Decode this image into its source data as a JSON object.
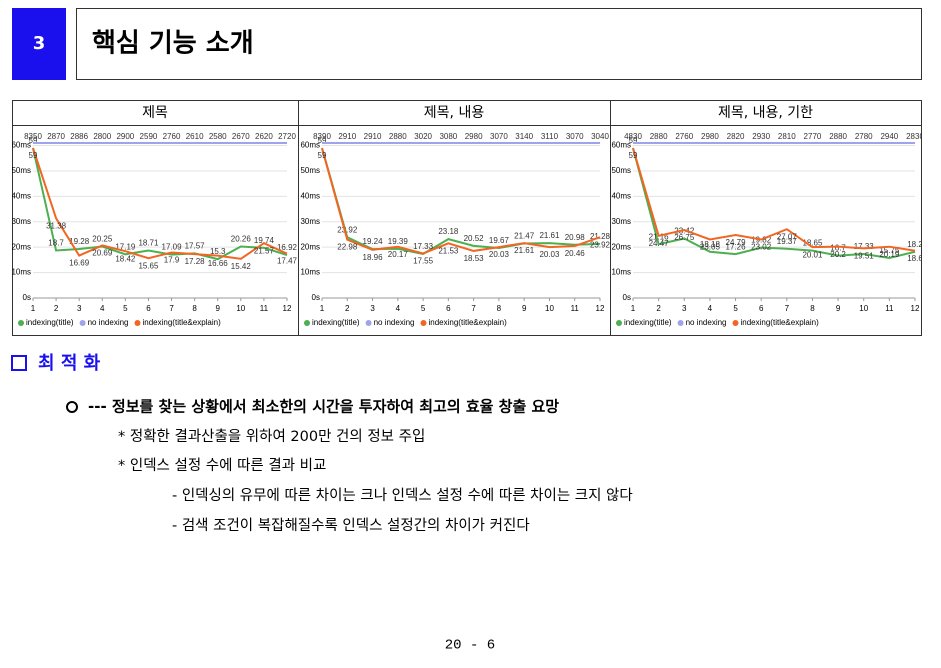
{
  "header": {
    "number": "3",
    "title": "핵심 기능 소개"
  },
  "chart_data": [
    {
      "type": "line",
      "title": "제목",
      "x": [
        1,
        2,
        3,
        4,
        5,
        6,
        7,
        8,
        9,
        10,
        11,
        12
      ],
      "xlim": [
        1,
        12
      ],
      "xticks": [
        1,
        2,
        3,
        4,
        5,
        6,
        7,
        8,
        9,
        10,
        11,
        12
      ],
      "ylim": [
        0,
        61
      ],
      "yticks": [
        {
          "value": 0,
          "label": "0s"
        },
        {
          "value": 10,
          "label": "10ms"
        },
        {
          "value": 20,
          "label": "20ms"
        },
        {
          "value": 30,
          "label": "30ms"
        },
        {
          "value": 40,
          "label": "40ms"
        },
        {
          "value": 50,
          "label": "50ms"
        },
        {
          "value": 60,
          "label": "60ms"
        }
      ],
      "grid": true,
      "series": [
        {
          "name": "indexing(title)",
          "color": "#4caf50",
          "values": [
            59,
            18.7,
            19.28,
            20.25,
            17.19,
            18.71,
            17.09,
            17.57,
            15.3,
            20.26,
            19.74,
            16.92
          ]
        },
        {
          "name": "no indexing",
          "color": "#9fa3ee",
          "values": [
            8350,
            2870,
            2886,
            2800,
            2900,
            2590,
            2760,
            2610,
            2580,
            2670,
            2620,
            2720
          ]
        },
        {
          "name": "indexing(title&explain)",
          "color": "#f26522",
          "values": [
            59,
            31.38,
            16.69,
            20.69,
            18.42,
            15.65,
            17.9,
            17.28,
            16.66,
            15.42,
            21.57,
            17.47
          ]
        }
      ]
    },
    {
      "type": "line",
      "title": "제목, 내용",
      "x": [
        1,
        2,
        3,
        4,
        5,
        6,
        7,
        8,
        9,
        10,
        11,
        12
      ],
      "xlim": [
        1,
        12
      ],
      "xticks": [
        1,
        2,
        3,
        4,
        5,
        6,
        7,
        8,
        9,
        10,
        11,
        12
      ],
      "ylim": [
        0,
        61
      ],
      "yticks": [
        {
          "value": 0,
          "label": "0s"
        },
        {
          "value": 10,
          "label": "10ms"
        },
        {
          "value": 20,
          "label": "20ms"
        },
        {
          "value": 30,
          "label": "30ms"
        },
        {
          "value": 40,
          "label": "40ms"
        },
        {
          "value": 50,
          "label": "50ms"
        },
        {
          "value": 60,
          "label": "60ms"
        }
      ],
      "grid": true,
      "series": [
        {
          "name": "indexing(title)",
          "color": "#4caf50",
          "values": [
            59,
            23.92,
            19.24,
            19.39,
            17.33,
            23.18,
            20.52,
            19.67,
            21.47,
            21.61,
            20.98,
            21.28
          ]
        },
        {
          "name": "no indexing",
          "color": "#9fa3ee",
          "values": [
            8390,
            2910,
            2910,
            2880,
            3020,
            3080,
            2980,
            3070,
            3140,
            3110,
            3070,
            3040
          ]
        },
        {
          "name": "indexing(title&explain)",
          "color": "#f26522",
          "values": [
            59,
            22.98,
            18.96,
            20.17,
            17.55,
            21.53,
            18.53,
            20.03,
            21.61,
            20.03,
            20.46,
            23.92
          ]
        }
      ]
    },
    {
      "type": "line",
      "title": "제목, 내용, 기한",
      "x": [
        1,
        2,
        3,
        4,
        5,
        6,
        7,
        8,
        9,
        10,
        11,
        12
      ],
      "xlim": [
        1,
        12
      ],
      "xticks": [
        1,
        2,
        3,
        4,
        5,
        6,
        7,
        8,
        9,
        10,
        11,
        12
      ],
      "ylim": [
        0,
        61
      ],
      "yticks": [
        {
          "value": 0,
          "label": "0s"
        },
        {
          "value": 10,
          "label": "10ms"
        },
        {
          "value": 20,
          "label": "20ms"
        },
        {
          "value": 30,
          "label": "30ms"
        },
        {
          "value": 40,
          "label": "40ms"
        },
        {
          "value": 50,
          "label": "50ms"
        },
        {
          "value": 60,
          "label": "60ms"
        }
      ],
      "grid": true,
      "series": [
        {
          "name": "indexing(title)",
          "color": "#4caf50",
          "values": [
            59,
            21.16,
            23.42,
            18.18,
            17.26,
            19.82,
            19.37,
            18.65,
            16.7,
            17.33,
            15.75,
            18.2
          ]
        },
        {
          "name": "no indexing",
          "color": "#9fa3ee",
          "values": [
            4830,
            2880,
            2760,
            2980,
            2820,
            2930,
            2810,
            2770,
            2880,
            2780,
            2940,
            2830
          ]
        },
        {
          "name": "indexing(title&explain)",
          "color": "#f26522",
          "values": [
            59,
            24.47,
            26.75,
            23.05,
            24.79,
            23.02,
            27.07,
            20.01,
            20.2,
            19.51,
            20.19,
            18.6
          ]
        }
      ]
    }
  ],
  "section": "최 적 화",
  "bullets": [
    {
      "level": 1,
      "text": "--- 정보를 찾는 상황에서 최소한의 시간을 투자하여 최고의 효율 창출 요망"
    },
    {
      "level": 2,
      "text": "* 정확한 결과산출을 위하여 200만 건의 정보 주입"
    },
    {
      "level": 2,
      "text": "* 인덱스 설정 수에 따른 결과 비교"
    },
    {
      "level": 3,
      "text": "- 인덱싱의 유무에 따른 차이는 크나 인덱스 설정 수에 따른 차이는 크지 않다"
    },
    {
      "level": 3,
      "text": "- 검색 조건이 복잡해질수록 인덱스 설정간의 차이가 커진다"
    }
  ],
  "page": "20 - 6"
}
